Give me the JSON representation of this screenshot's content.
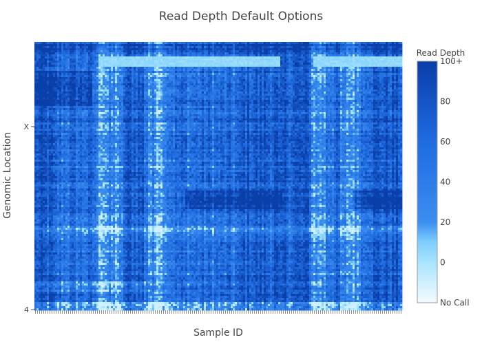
{
  "chart_data": {
    "type": "heatmap",
    "title": "Read Depth Default Options",
    "xlabel": "Sample ID",
    "ylabel": "Genomic Location",
    "y_ticks": [
      "X",
      "4"
    ],
    "colorbar": {
      "title": "Read Depth",
      "tick_labels": [
        "100+",
        "80",
        "60",
        "40",
        "20",
        "0",
        "No Call"
      ],
      "tick_values": [
        100,
        80,
        60,
        40,
        20,
        0,
        -20
      ],
      "range": [
        -20,
        100
      ]
    },
    "colorscale": [
      [
        -20,
        "#f4fbff"
      ],
      [
        0,
        "#a9e4ff"
      ],
      [
        10,
        "#7fcfff"
      ],
      [
        20,
        "#3c8ef0"
      ],
      [
        60,
        "#1f6be0"
      ],
      [
        100,
        "#0a3ea8"
      ]
    ]
  }
}
